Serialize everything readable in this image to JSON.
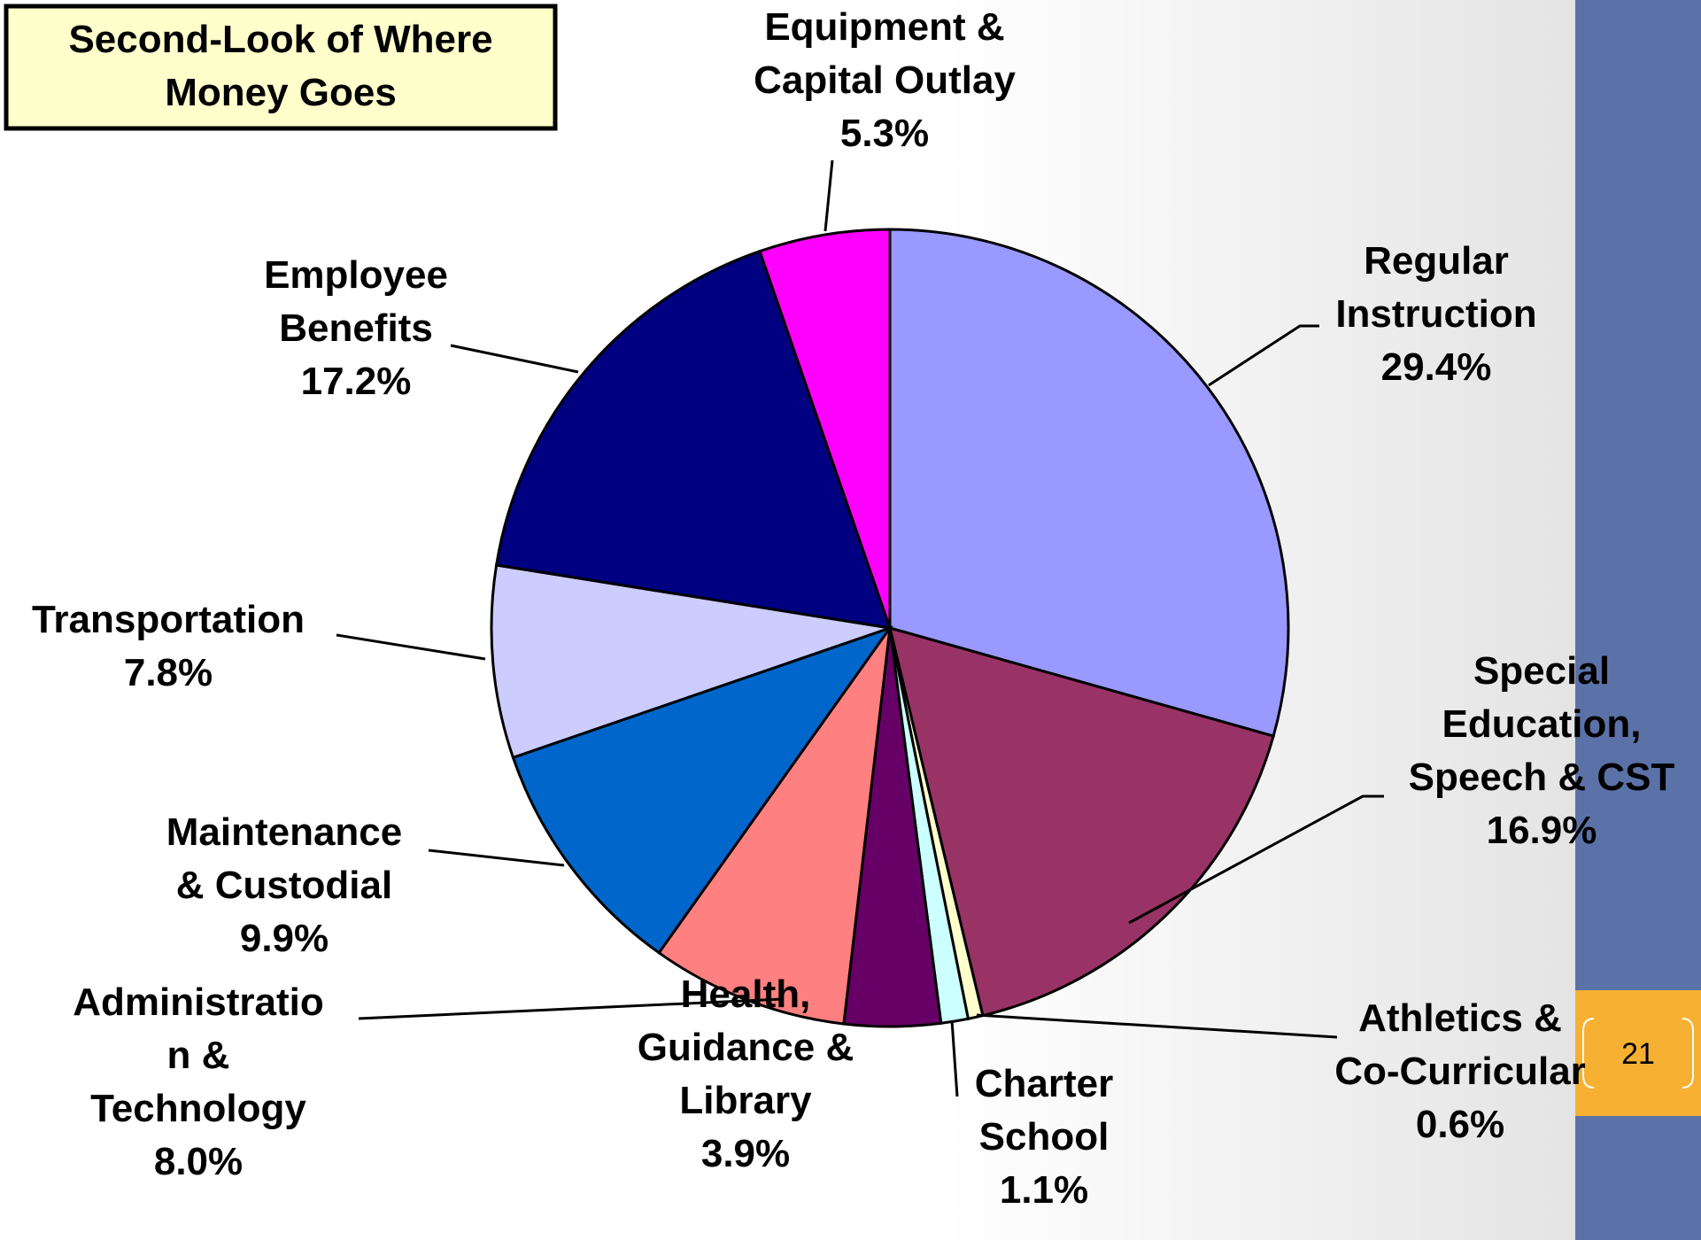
{
  "chart_data": {
    "type": "pie",
    "title": "Second-Look of Where\nMoney Goes",
    "categories": [
      "Regular\nInstruction",
      "Special\nEducation,\nSpeech & CST",
      "Athletics &\nCo-Curricular",
      "Charter\nSchool",
      "Health,\nGuidance &\nLibrary",
      "Administratio\nn &\nTechnology",
      "Maintenance\n& Custodial",
      "Transportation",
      "Employee\nBenefits",
      "Equipment &\nCapital Outlay"
    ],
    "values": [
      29.4,
      16.9,
      0.6,
      1.1,
      3.9,
      8.0,
      9.9,
      7.8,
      17.2,
      5.3
    ],
    "value_labels": [
      "29.4%",
      "16.9%",
      "0.6%",
      "1.1%",
      "3.9%",
      "8.0%",
      "9.9%",
      "7.8%",
      "17.2%",
      "5.3%"
    ],
    "colors": [
      "#9999ff",
      "#993366",
      "#ffffcc",
      "#ccffff",
      "#660066",
      "#ff8080",
      "#0066cc",
      "#ccccff",
      "#000080",
      "#ff00ff"
    ]
  },
  "page_number": "21"
}
